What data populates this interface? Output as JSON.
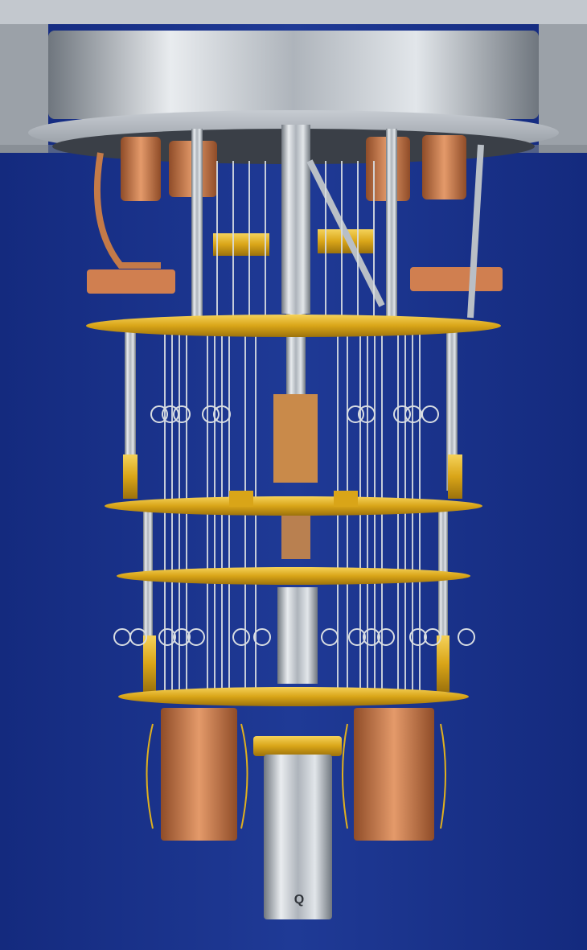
{
  "photo": {
    "subject": "dilution-refrigerator-chandelier",
    "colors": {
      "backdrop": "#1c3690",
      "backdrop_edge": "#14287a",
      "ceiling": "#aeb4bc",
      "steel": "#c9ced3",
      "steel_dark": "#7c838b",
      "gold": "#e0b01e",
      "gold_dark": "#a57a10",
      "copper": "#d98a5a",
      "copper_dark": "#9a5530",
      "wire": "#d8dde2"
    },
    "label_on_canister": "Q"
  }
}
